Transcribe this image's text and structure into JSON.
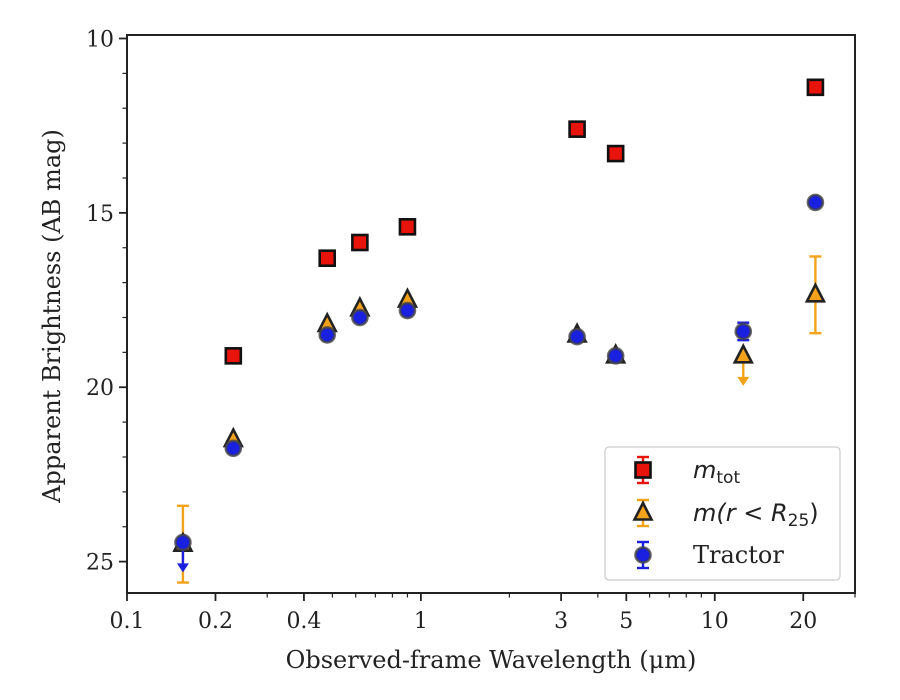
{
  "chart_data": {
    "type": "scatter",
    "xlabel": "Observed-frame Wavelength (μm)",
    "ylabel": "Apparent Brightness (AB mag)",
    "x_scale": "log",
    "xlim": [
      0.1,
      30
    ],
    "ylim": [
      25.9,
      9.9
    ],
    "y_inverted": true,
    "x_ticks": [
      0.1,
      0.2,
      0.4,
      1,
      3,
      5,
      10,
      20
    ],
    "x_tick_labels": [
      "0.1",
      "0.2",
      "0.4",
      "1",
      "3",
      "5",
      "10",
      "20"
    ],
    "y_ticks": [
      10,
      15,
      20,
      25
    ],
    "y_tick_labels": [
      "10",
      "15",
      "20",
      "25"
    ],
    "legend_position": "lower-right",
    "legend": {
      "m_tot": "m",
      "m_tot_sub": "tot",
      "m_r25_a": "m(r < R",
      "m_r25_sub": "25",
      "m_r25_b": ")",
      "tractor": "Tractor"
    },
    "series": [
      {
        "name": "m_tot",
        "marker": "square",
        "color": "#e8140c",
        "edge": "#111111",
        "points": [
          {
            "x": 0.23,
            "y": 19.1
          },
          {
            "x": 0.48,
            "y": 16.3
          },
          {
            "x": 0.62,
            "y": 15.85
          },
          {
            "x": 0.9,
            "y": 15.4
          },
          {
            "x": 3.4,
            "y": 12.6
          },
          {
            "x": 4.6,
            "y": 13.3
          },
          {
            "x": 22,
            "y": 11.4
          }
        ]
      },
      {
        "name": "m(r < R25)",
        "marker": "triangle",
        "color": "#f5a21b",
        "edge": "#222222",
        "points": [
          {
            "x": 0.155,
            "y": 24.5,
            "err_up": 1.1,
            "err_down": 1.1
          },
          {
            "x": 0.23,
            "y": 21.5
          },
          {
            "x": 0.48,
            "y": 18.2
          },
          {
            "x": 0.62,
            "y": 17.75
          },
          {
            "x": 0.9,
            "y": 17.5
          },
          {
            "x": 3.4,
            "y": 18.5
          },
          {
            "x": 4.6,
            "y": 19.1
          },
          {
            "x": 12.5,
            "y": 19.1,
            "upper_limit": true
          },
          {
            "x": 22,
            "y": 17.35,
            "err_up": 1.1,
            "err_down": 1.1
          }
        ]
      },
      {
        "name": "Tractor",
        "marker": "circle",
        "color": "#1a20e0",
        "edge": "#444444",
        "points": [
          {
            "x": 0.155,
            "y": 24.45,
            "upper_limit": true
          },
          {
            "x": 0.23,
            "y": 21.75
          },
          {
            "x": 0.48,
            "y": 18.5
          },
          {
            "x": 0.62,
            "y": 18.0
          },
          {
            "x": 0.9,
            "y": 17.8
          },
          {
            "x": 3.4,
            "y": 18.55
          },
          {
            "x": 4.6,
            "y": 19.1
          },
          {
            "x": 12.5,
            "y": 18.4,
            "err_up": 0.25,
            "err_down": 0.25
          },
          {
            "x": 22,
            "y": 14.7
          }
        ]
      }
    ]
  }
}
